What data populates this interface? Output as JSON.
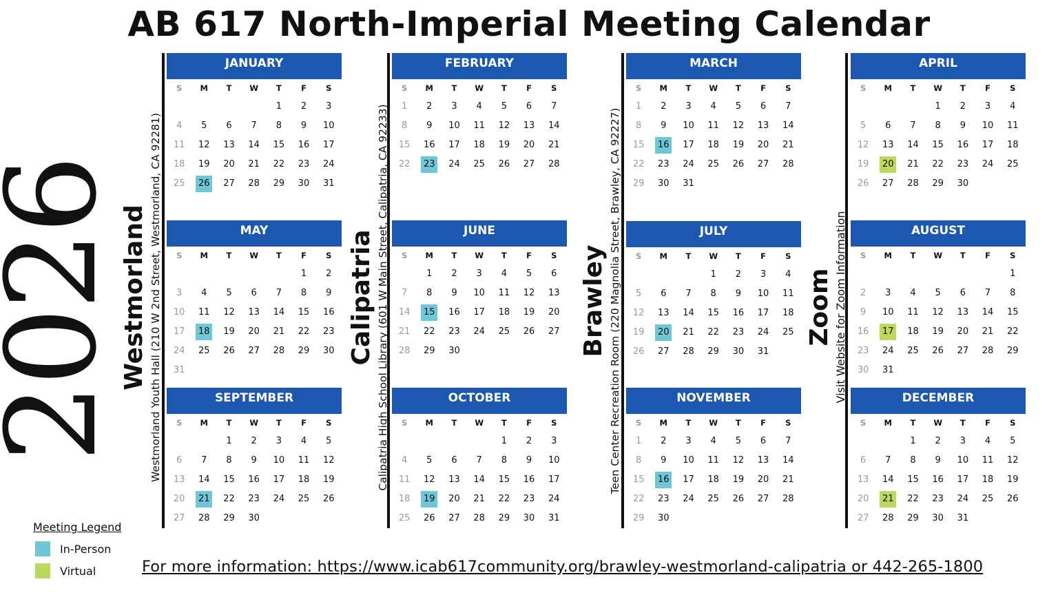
{
  "title": "AB 617 North-Imperial Meeting Calendar",
  "year": "2026",
  "colors": {
    "header": "#1c57b0",
    "in_person": "#6dc7d6",
    "virtual": "#bcd95e"
  },
  "weekdays": [
    "S",
    "M",
    "T",
    "W",
    "T",
    "F",
    "S"
  ],
  "locations": [
    {
      "name": "Westmorland",
      "address": "Westmorland Youth Hall (210 W 2nd Street, Westmorland, CA 92281)"
    },
    {
      "name": "Calipatria",
      "address": "Calipatria High School Library (601 W Main Street, Calipatria, CA 92233)"
    },
    {
      "name": "Brawley",
      "address": "Teen Center Recreation Room  (220 Magnolia Street, Brawley, CA 92227)"
    },
    {
      "name": "Zoom",
      "address": "Visit Website for Zoom Information"
    }
  ],
  "months": [
    {
      "name": "JANUARY",
      "start": 4,
      "days": 31,
      "meeting": 26,
      "type": "in-person"
    },
    {
      "name": "FEBRUARY",
      "start": 0,
      "days": 28,
      "meeting": 23,
      "type": "in-person"
    },
    {
      "name": "MARCH",
      "start": 0,
      "days": 31,
      "meeting": 16,
      "type": "in-person"
    },
    {
      "name": "APRIL",
      "start": 3,
      "days": 30,
      "meeting": 20,
      "type": "virtual"
    },
    {
      "name": "MAY",
      "start": 5,
      "days": 31,
      "meeting": 18,
      "type": "in-person"
    },
    {
      "name": "JUNE",
      "start": 1,
      "days": 30,
      "meeting": 15,
      "type": "in-person"
    },
    {
      "name": "JULY",
      "start": 3,
      "days": 31,
      "meeting": 20,
      "type": "in-person"
    },
    {
      "name": "AUGUST",
      "start": 6,
      "days": 31,
      "meeting": 17,
      "type": "virtual"
    },
    {
      "name": "SEPTEMBER",
      "start": 2,
      "days": 30,
      "meeting": 21,
      "type": "in-person"
    },
    {
      "name": "OCTOBER",
      "start": 4,
      "days": 31,
      "meeting": 19,
      "type": "in-person"
    },
    {
      "name": "NOVEMBER",
      "start": 0,
      "days": 30,
      "meeting": 16,
      "type": "in-person"
    },
    {
      "name": "DECEMBER",
      "start": 2,
      "days": 31,
      "meeting": 21,
      "type": "virtual"
    }
  ],
  "legend": {
    "title": "Meeting Legend",
    "items": [
      {
        "label": "In-Person"
      },
      {
        "label": "Virtual"
      }
    ]
  },
  "footer": "For more information: https://www.icab617community.org/brawley-westmorland-calipatria or 442-265-1800"
}
